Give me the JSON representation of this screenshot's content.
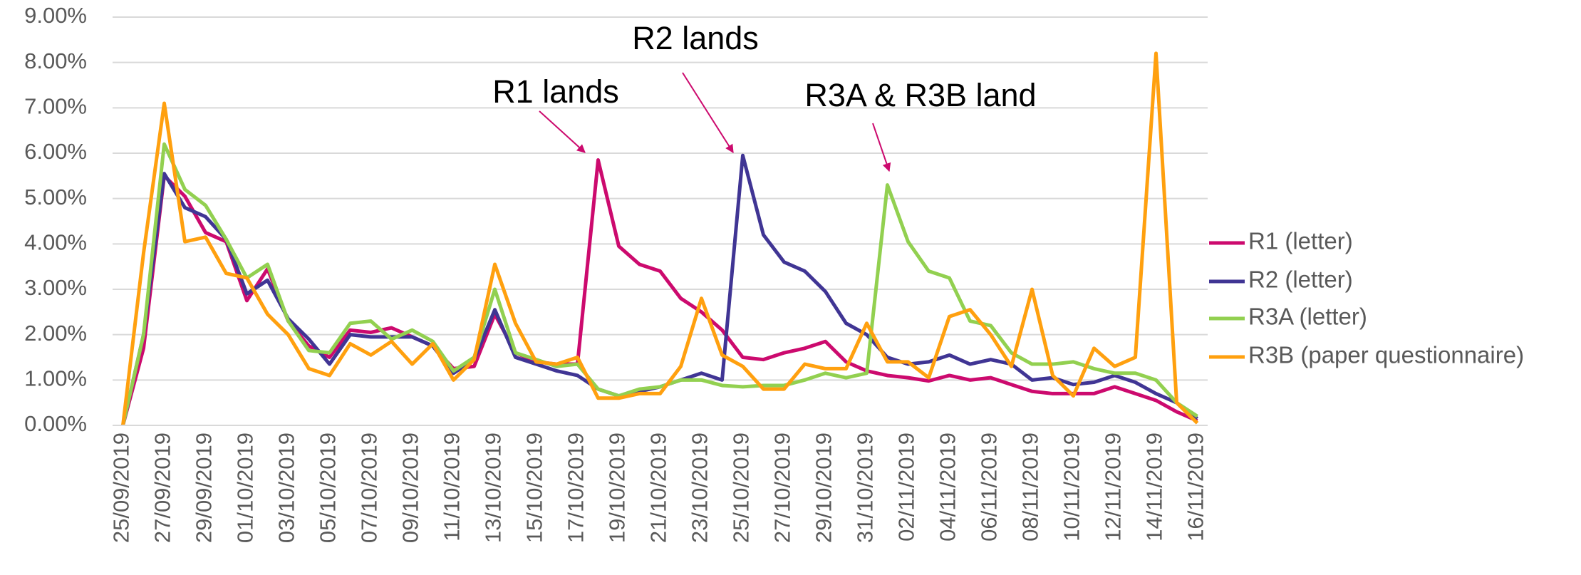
{
  "chart_data": {
    "type": "line",
    "categories": [
      "25/09/2019",
      null,
      "27/09/2019",
      null,
      "29/09/2019",
      null,
      "01/10/2019",
      null,
      "03/10/2019",
      null,
      "05/10/2019",
      null,
      "07/10/2019",
      null,
      "09/10/2019",
      null,
      "11/10/2019",
      null,
      "13/10/2019",
      null,
      "15/10/2019",
      null,
      "17/10/2019",
      null,
      "19/10/2019",
      null,
      "21/10/2019",
      null,
      "23/10/2019",
      null,
      "25/10/2019",
      null,
      "27/10/2019",
      null,
      "29/10/2019",
      null,
      "31/10/2019",
      null,
      "02/11/2019",
      null,
      "04/11/2019",
      null,
      "06/11/2019",
      null,
      "08/11/2019",
      null,
      "10/11/2019",
      null,
      "12/11/2019",
      null,
      "14/11/2019",
      null,
      "16/11/2019"
    ],
    "series": [
      {
        "name": "R1 (letter)",
        "color": "#cc0a6e",
        "values": [
          0,
          1.7,
          5.5,
          5.05,
          4.25,
          4.05,
          2.75,
          3.45,
          2.3,
          1.75,
          1.5,
          2.1,
          2.05,
          2.15,
          1.95,
          1.75,
          1.25,
          1.3,
          2.45,
          1.6,
          1.4,
          1.35,
          1.35,
          5.85,
          3.95,
          3.55,
          3.4,
          2.8,
          2.5,
          2.1,
          1.5,
          1.45,
          1.6,
          1.7,
          1.85,
          1.4,
          1.2,
          1.1,
          1.05,
          0.98,
          1.1,
          1.0,
          1.05,
          0.9,
          0.75,
          0.7,
          0.7,
          0.7,
          0.85,
          0.7,
          0.55,
          0.3,
          0.1
        ]
      },
      {
        "name": "R2 (letter)",
        "color": "#403594",
        "values": [
          0,
          2.0,
          5.55,
          4.8,
          4.6,
          4.1,
          2.9,
          3.2,
          2.35,
          1.9,
          1.35,
          2.0,
          1.95,
          1.95,
          1.95,
          1.75,
          1.15,
          1.45,
          2.55,
          1.5,
          1.35,
          1.2,
          1.1,
          0.8,
          0.65,
          0.75,
          0.85,
          1.0,
          1.15,
          1.0,
          5.95,
          4.2,
          3.6,
          3.4,
          2.95,
          2.25,
          2.0,
          1.5,
          1.35,
          1.4,
          1.55,
          1.35,
          1.45,
          1.35,
          1.0,
          1.05,
          0.9,
          0.95,
          1.1,
          0.95,
          0.7,
          0.5,
          0.15
        ]
      },
      {
        "name": "R3A (letter)",
        "color": "#92d050",
        "values": [
          0,
          2.0,
          6.2,
          5.2,
          4.85,
          4.1,
          3.25,
          3.55,
          2.3,
          1.65,
          1.6,
          2.25,
          2.3,
          1.9,
          2.1,
          1.85,
          1.2,
          1.5,
          3.0,
          1.6,
          1.45,
          1.3,
          1.35,
          0.8,
          0.65,
          0.8,
          0.85,
          1.0,
          1.0,
          0.88,
          0.85,
          0.88,
          0.88,
          1.0,
          1.15,
          1.05,
          1.15,
          5.3,
          4.05,
          3.4,
          3.25,
          2.3,
          2.2,
          1.6,
          1.35,
          1.35,
          1.4,
          1.25,
          1.15,
          1.15,
          1.0,
          0.5,
          0.2
        ]
      },
      {
        "name": "R3B (paper questionnaire)",
        "color": "#ffa00f",
        "values": [
          0,
          3.8,
          7.1,
          4.05,
          4.15,
          3.35,
          3.25,
          2.45,
          2.0,
          1.25,
          1.1,
          1.8,
          1.55,
          1.85,
          1.35,
          1.8,
          1.0,
          1.45,
          3.55,
          2.25,
          1.4,
          1.35,
          1.5,
          0.6,
          0.6,
          0.7,
          0.7,
          1.3,
          2.8,
          1.55,
          1.3,
          0.8,
          0.8,
          1.35,
          1.25,
          1.25,
          2.25,
          1.4,
          1.4,
          1.05,
          2.4,
          2.55,
          2.0,
          1.3,
          3.0,
          1.1,
          0.65,
          1.7,
          1.3,
          1.5,
          8.2,
          0.5,
          0.05
        ]
      }
    ],
    "ylim": [
      0,
      9
    ],
    "yticks": [
      {
        "value": 0,
        "label": "0.00%"
      },
      {
        "value": 1,
        "label": "1.00%"
      },
      {
        "value": 2,
        "label": "2.00%"
      },
      {
        "value": 3,
        "label": "3.00%"
      },
      {
        "value": 4,
        "label": "4.00%"
      },
      {
        "value": 5,
        "label": "5.00%"
      },
      {
        "value": 6,
        "label": "6.00%"
      },
      {
        "value": 7,
        "label": "7.00%"
      },
      {
        "value": 8,
        "label": "8.00%"
      },
      {
        "value": 9,
        "label": "9.00%"
      }
    ],
    "grid": true,
    "legend": "right",
    "annotations": [
      "R1 lands",
      "R2 lands",
      "R3A & R3B land"
    ]
  }
}
